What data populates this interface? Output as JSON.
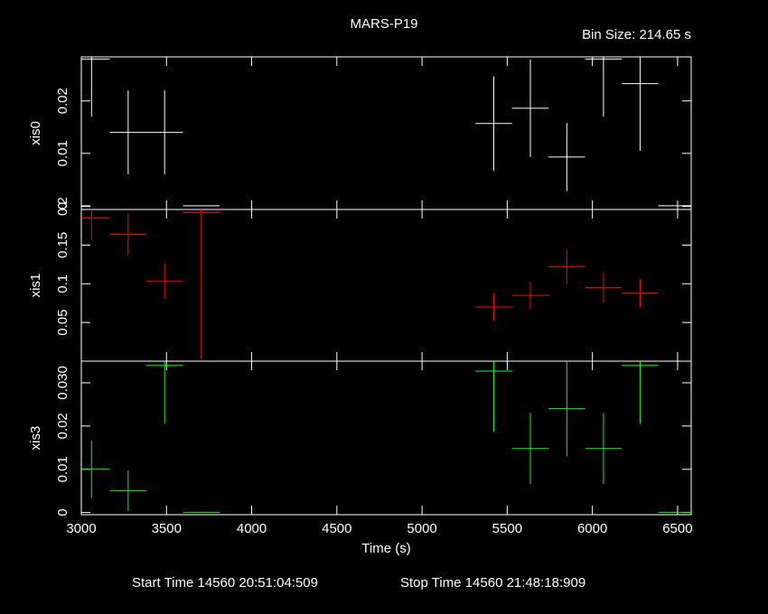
{
  "header": {
    "title": "MARS-P19",
    "bin_size": "Bin Size: 214.65 s"
  },
  "footer": {
    "start": "Start Time 14560 20:51:04:509",
    "stop": "Stop Time 14560 21:48:18:909"
  },
  "chart_data": [
    {
      "type": "errorbar",
      "ylabel": "xis0",
      "xlim": [
        3000,
        6580
      ],
      "xticks": [
        3000,
        3500,
        4000,
        4500,
        5000,
        5500,
        6000,
        6500
      ],
      "ylim": [
        -0.0007,
        0.0284
      ],
      "yticks": [
        0,
        0.01,
        0.02
      ],
      "x_err": 107.3,
      "series": [
        {
          "name": "xis0",
          "color": "#ffffff",
          "x": [
            3060,
            3275,
            3489,
            3704,
            5421,
            5636,
            5850,
            6065,
            6280,
            6494
          ],
          "values": [
            0.028,
            0.014,
            0.014,
            0,
            0.0157,
            0.0186,
            0.0093,
            0.028,
            0.0233,
            0
          ],
          "errors": [
            0.011,
            0.008,
            0.008,
            0,
            0.009,
            0.0093,
            0.0065,
            0.011,
            0.0128,
            0
          ]
        }
      ]
    },
    {
      "type": "errorbar",
      "ylabel": "xis1",
      "xlim": [
        3000,
        6580
      ],
      "xticks": [
        3000,
        3500,
        4000,
        4500,
        5000,
        5500,
        6000,
        6500
      ],
      "ylim": [
        0,
        0.196
      ],
      "yticks": [
        0.05,
        0.1,
        0.15,
        0.2
      ],
      "x_err": 107.3,
      "series": [
        {
          "name": "xis1",
          "color": "#ff0000",
          "x": [
            3060,
            3275,
            3489,
            3704,
            5421,
            5636,
            5850,
            6065,
            6280,
            6494
          ],
          "values": [
            0.185,
            0.164,
            0.103,
            0.192,
            0.07,
            0.085,
            0.122,
            0.095,
            0.088,
            0
          ],
          "errors": [
            0.028,
            0.027,
            0.023,
            0.19,
            0.018,
            0.018,
            0.022,
            0.02,
            0.018,
            0
          ]
        }
      ]
    },
    {
      "type": "errorbar",
      "ylabel": "xis3",
      "xlabel": "Time (s)",
      "xlim": [
        3000,
        6580
      ],
      "xticks": [
        3000,
        3500,
        4000,
        4500,
        5000,
        5500,
        6000,
        6500
      ],
      "ylim": [
        -0.0005,
        0.035
      ],
      "yticks": [
        0,
        0.01,
        0.02,
        {
          "value": 0.03,
          "label": "0.030"
        }
      ],
      "x_err": 107.3,
      "series": [
        {
          "name": "xis3",
          "color": "#00ff00",
          "x": [
            3060,
            3275,
            3489,
            3704,
            5421,
            5636,
            5850,
            6065,
            6280,
            6494
          ],
          "values": [
            0.01,
            0.005,
            0.034,
            0,
            0.0327,
            0.0148,
            0.024,
            0.0148,
            0.034,
            0
          ],
          "errors": [
            0.0067,
            0.0047,
            0.0135,
            0,
            0.014,
            0.0082,
            0.011,
            0.0082,
            0.0135,
            0
          ]
        }
      ]
    }
  ]
}
